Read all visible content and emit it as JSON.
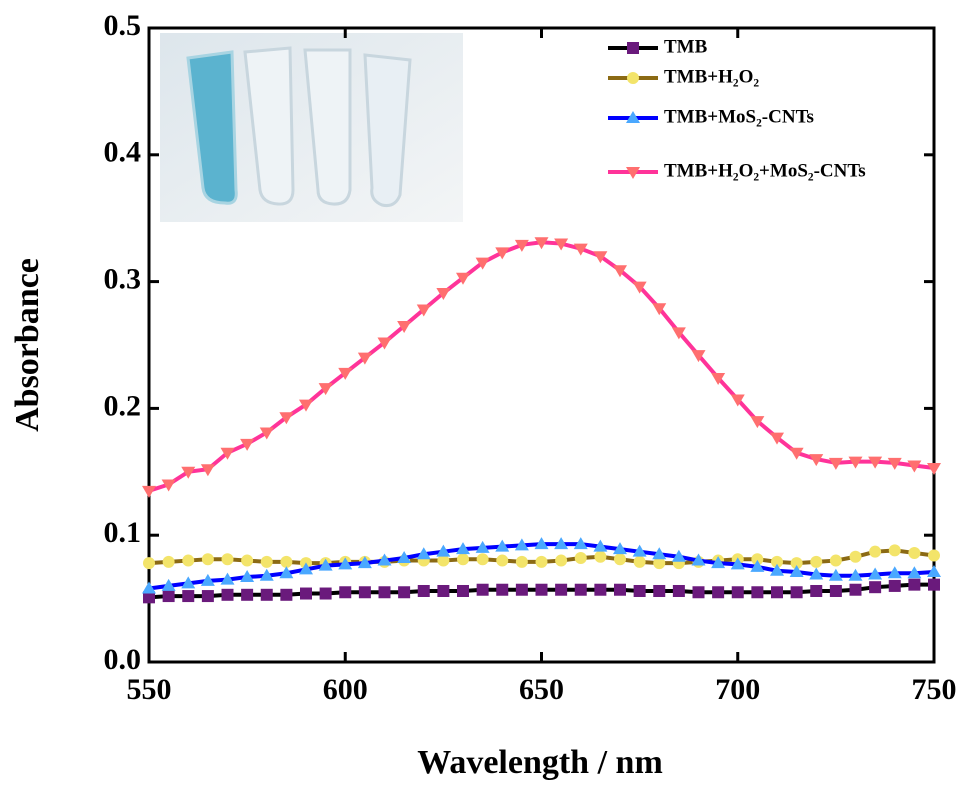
{
  "chart_data": {
    "type": "line",
    "xlabel": "Wavelength / nm",
    "ylabel": "Absorbance",
    "x": [
      550,
      555,
      560,
      565,
      570,
      575,
      580,
      585,
      590,
      595,
      600,
      605,
      610,
      615,
      620,
      625,
      630,
      635,
      640,
      645,
      650,
      655,
      660,
      665,
      670,
      675,
      680,
      685,
      690,
      695,
      700,
      705,
      710,
      715,
      720,
      725,
      730,
      735,
      740,
      745,
      750
    ],
    "xlim": [
      550,
      750
    ],
    "xticks": [
      550,
      600,
      650,
      700,
      750
    ],
    "ylim": [
      0,
      0.5
    ],
    "yticks": [
      {
        "value": 0,
        "label": "0.0"
      },
      0.1,
      0.2,
      0.3,
      0.4,
      0.5
    ],
    "legend": "upper right",
    "series": [
      {
        "name": "TMB",
        "color": "#000000",
        "marker_color": "#6a1a7c",
        "marker": "square",
        "values": [
          0.051,
          0.052,
          0.052,
          0.052,
          0.053,
          0.053,
          0.053,
          0.053,
          0.054,
          0.054,
          0.055,
          0.055,
          0.055,
          0.055,
          0.056,
          0.056,
          0.056,
          0.057,
          0.057,
          0.057,
          0.057,
          0.057,
          0.057,
          0.057,
          0.057,
          0.056,
          0.056,
          0.056,
          0.055,
          0.055,
          0.055,
          0.055,
          0.055,
          0.055,
          0.056,
          0.056,
          0.057,
          0.059,
          0.06,
          0.061,
          0.061
        ]
      },
      {
        "name": "TMB+H₂O₂",
        "color": "#8b6a14",
        "marker_color": "#f3e46a",
        "marker": "circle",
        "values": [
          0.078,
          0.079,
          0.08,
          0.081,
          0.081,
          0.08,
          0.079,
          0.079,
          0.078,
          0.078,
          0.079,
          0.079,
          0.079,
          0.08,
          0.08,
          0.08,
          0.081,
          0.081,
          0.08,
          0.079,
          0.079,
          0.08,
          0.082,
          0.083,
          0.081,
          0.079,
          0.078,
          0.078,
          0.079,
          0.08,
          0.081,
          0.081,
          0.079,
          0.078,
          0.079,
          0.08,
          0.083,
          0.087,
          0.088,
          0.086,
          0.084
        ]
      },
      {
        "name": "TMB+MoS₂-CNTs",
        "color": "#0000ff",
        "marker_color": "#4aa8ff",
        "marker": "triangle-up",
        "values": [
          0.058,
          0.06,
          0.062,
          0.064,
          0.065,
          0.067,
          0.068,
          0.07,
          0.073,
          0.076,
          0.077,
          0.078,
          0.08,
          0.082,
          0.085,
          0.087,
          0.089,
          0.09,
          0.091,
          0.092,
          0.093,
          0.093,
          0.093,
          0.091,
          0.089,
          0.087,
          0.085,
          0.083,
          0.08,
          0.078,
          0.077,
          0.075,
          0.072,
          0.071,
          0.069,
          0.068,
          0.068,
          0.069,
          0.07,
          0.07,
          0.071
        ]
      },
      {
        "name": "TMB+H₂O₂+MoS₂-CNTs",
        "color": "#ff3399",
        "marker_color": "#ff6f6f",
        "marker": "triangle-down",
        "values": [
          0.135,
          0.14,
          0.15,
          0.152,
          0.165,
          0.172,
          0.181,
          0.193,
          0.203,
          0.216,
          0.228,
          0.24,
          0.252,
          0.265,
          0.278,
          0.291,
          0.303,
          0.315,
          0.323,
          0.329,
          0.331,
          0.33,
          0.326,
          0.32,
          0.309,
          0.296,
          0.279,
          0.26,
          0.242,
          0.224,
          0.207,
          0.19,
          0.177,
          0.165,
          0.16,
          0.157,
          0.158,
          0.158,
          0.157,
          0.155,
          0.153
        ]
      }
    ]
  }
}
